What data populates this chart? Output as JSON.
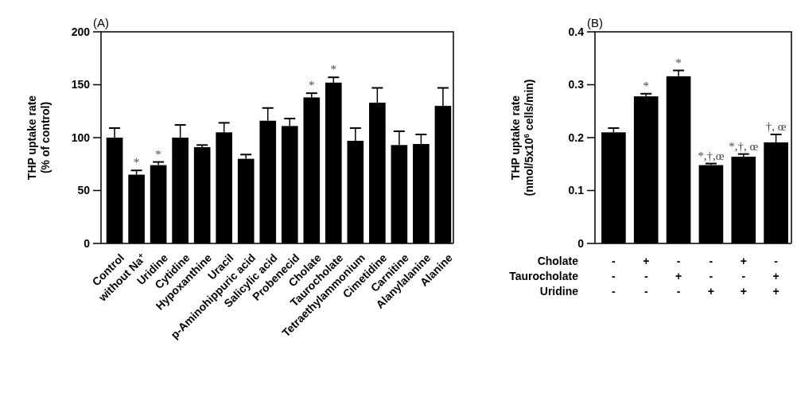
{
  "chart_data": [
    {
      "type": "bar",
      "title": "(A)",
      "ylabel": "THP uptake rate\n(% of control)",
      "categories": [
        "Control",
        "without Na$^{+}$",
        "Uridine",
        "Cytidine",
        "Hypoxanthine",
        "Uracil",
        "p-Aminohippuric  acid",
        "Salicylic acid",
        "Probenecid",
        "Cholate",
        "Taurocholate",
        "Tetraethylammonium",
        "Cimetidine",
        "Carnitine",
        "Alanylalanine",
        "Alanine"
      ],
      "values": [
        100,
        65,
        74,
        100,
        91,
        105,
        80,
        116,
        111,
        138,
        152,
        97,
        133,
        93,
        94,
        130
      ],
      "errors": [
        9,
        4,
        3,
        12,
        2,
        9,
        4,
        12,
        7,
        4,
        5,
        12,
        14,
        13,
        9,
        17
      ],
      "color": "#000000",
      "ylim": [
        0,
        200
      ],
      "yticks": [
        0,
        50,
        100,
        150,
        200
      ],
      "annotations": [
        {
          "text": "*",
          "x": "without Na$^{+}$",
          "y": 69
        },
        {
          "text": "*",
          "x": "Uridine",
          "y": 77
        },
        {
          "text": "*",
          "x": "Cholate",
          "y": 142
        },
        {
          "text": "*",
          "x": "Taurocholate",
          "y": 157
        }
      ]
    },
    {
      "type": "bar",
      "title": "(B)",
      "ylabel": "THP uptake rate\n(nmol/5x10$^{6}$ cells/min)",
      "categories": [
        "-\n-\n-",
        "+\n-\n-",
        "-\n+\n-",
        "-\n-\n+",
        "+\n-\n+",
        "-\n+\n+"
      ],
      "values": [
        0.21,
        0.278,
        0.316,
        0.148,
        0.164,
        0.191
      ],
      "errors": [
        0.008,
        0.005,
        0.011,
        0.003,
        0.005,
        0.015
      ],
      "color": "#000000",
      "ylim": [
        0,
        0.4
      ],
      "yticks": [
        {
          "value": 0,
          "label": "0"
        },
        0.1,
        0.2,
        0.3,
        0.4
      ],
      "annotations": [
        "Cholate",
        "Taurocholate",
        "Uridine",
        {
          "text": "*",
          "x": "+\n-\n-",
          "y": 0.283
        },
        {
          "text": "*",
          "x": "-\n+\n-",
          "y": 0.327
        },
        {
          "text": "*,†,œ",
          "x": "-\n-\n+",
          "y": 0.15
        },
        {
          "text": "*,†, œ",
          "x": "+\n-\n+",
          "y": 0.169
        },
        {
          "text": "†, œ",
          "x": "-\n+\n+",
          "y": 0.206
        }
      ]
    }
  ]
}
